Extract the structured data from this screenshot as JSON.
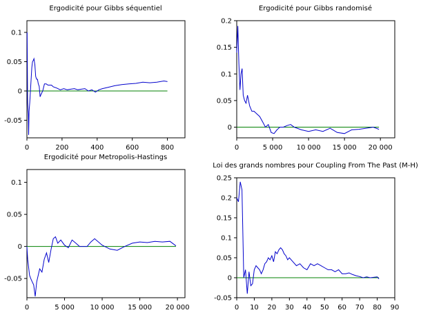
{
  "chart_data": [
    {
      "type": "line",
      "title": "Ergodicité pour Gibbs séquentiel",
      "xlabel": "",
      "ylabel": "",
      "xlim": [
        0,
        900
      ],
      "ylim": [
        -0.08,
        0.12
      ],
      "xticks": [
        0,
        200,
        400,
        600,
        800
      ],
      "xtick_labels": [
        "0",
        "200",
        "400",
        "600",
        "800"
      ],
      "yticks": [
        -0.05,
        0,
        0.05,
        0.1
      ],
      "ytick_labels": [
        "-0.05",
        "0",
        "0.05",
        "0.1"
      ],
      "reference_line": 0,
      "series": [
        {
          "x": [
            1,
            4,
            8,
            10,
            12,
            16,
            20,
            24,
            28,
            32,
            36,
            40,
            45,
            50,
            55,
            60,
            65,
            70,
            75,
            80,
            90,
            100,
            110,
            120,
            130,
            140,
            150,
            170,
            190,
            210,
            230,
            250,
            270,
            290,
            310,
            330,
            350,
            370,
            390,
            410,
            430,
            460,
            500,
            540,
            580,
            620,
            660,
            700,
            740,
            780,
            800
          ],
          "y": [
            0.1,
            -0.02,
            -0.04,
            -0.075,
            -0.035,
            -0.02,
            0.0,
            0.02,
            0.04,
            0.05,
            0.052,
            0.055,
            0.045,
            0.025,
            0.02,
            0.02,
            0.012,
            0.008,
            -0.01,
            -0.006,
            0.0,
            0.012,
            0.012,
            0.01,
            0.01,
            0.01,
            0.007,
            0.005,
            0.002,
            0.004,
            0.002,
            0.003,
            0.004,
            0.002,
            0.003,
            0.004,
            0.0,
            0.002,
            -0.002,
            0.002,
            0.004,
            0.006,
            0.009,
            0.011,
            0.012,
            0.013,
            0.015,
            0.014,
            0.015,
            0.017,
            0.016
          ]
        }
      ]
    },
    {
      "type": "line",
      "title": "Ergodicité pour Gibbs randomisé",
      "xlabel": "",
      "ylabel": "",
      "xlim": [
        0,
        22000
      ],
      "ylim": [
        -0.02,
        0.2
      ],
      "xticks": [
        0,
        5000,
        10000,
        15000,
        20000
      ],
      "xtick_labels": [
        "0",
        "5 000",
        "10 000",
        "15 000",
        "20 000"
      ],
      "yticks": [
        0,
        0.05,
        0.1,
        0.15,
        0.2
      ],
      "ytick_labels": [
        "0",
        "0.05",
        "0.1",
        "0.15",
        "0.2"
      ],
      "reference_line": 0,
      "series": [
        {
          "x": [
            0,
            150,
            300,
            450,
            600,
            750,
            900,
            1100,
            1300,
            1500,
            1800,
            2100,
            2400,
            2800,
            3200,
            3600,
            4000,
            4400,
            4800,
            5200,
            5600,
            6000,
            6500,
            7000,
            7500,
            8000,
            9000,
            10000,
            11000,
            12000,
            13000,
            14000,
            15000,
            16000,
            17000,
            18000,
            19000,
            19800
          ],
          "y": [
            0.14,
            0.19,
            0.12,
            0.07,
            0.1,
            0.11,
            0.06,
            0.05,
            0.045,
            0.06,
            0.04,
            0.03,
            0.03,
            0.025,
            0.02,
            0.01,
            0.0,
            0.005,
            -0.01,
            -0.012,
            -0.005,
            0.0,
            0.0,
            0.003,
            0.005,
            0.0,
            -0.005,
            -0.008,
            -0.005,
            -0.008,
            -0.002,
            -0.01,
            -0.012,
            -0.005,
            -0.004,
            -0.002,
            0.0,
            -0.004
          ]
        }
      ]
    },
    {
      "type": "line",
      "title": "Ergodicité pour Metropolis-Hastings",
      "xlabel": "",
      "ylabel": "",
      "xlim": [
        0,
        21000
      ],
      "ylim": [
        -0.08,
        0.12
      ],
      "xticks": [
        0,
        5000,
        10000,
        15000,
        20000
      ],
      "xtick_labels": [
        "0",
        "5 000",
        "10 000",
        "15 000",
        "20 000"
      ],
      "yticks": [
        -0.05,
        0,
        0.05,
        0.1
      ],
      "ytick_labels": [
        "-0.05",
        "0",
        "0.05",
        "0.1"
      ],
      "reference_line": 0,
      "series": [
        {
          "x": [
            0,
            100,
            200,
            350,
            500,
            700,
            900,
            1100,
            1300,
            1500,
            1700,
            2000,
            2300,
            2600,
            2900,
            3200,
            3500,
            3800,
            4100,
            4500,
            5000,
            5500,
            6000,
            6500,
            7000,
            7500,
            8000,
            8500,
            9000,
            10000,
            11000,
            12000,
            13000,
            14000,
            15000,
            16000,
            17000,
            18000,
            19000,
            19800
          ],
          "y": [
            0.0,
            -0.02,
            -0.03,
            -0.045,
            -0.05,
            -0.055,
            -0.06,
            -0.078,
            -0.055,
            -0.045,
            -0.035,
            -0.04,
            -0.02,
            -0.01,
            -0.025,
            -0.005,
            0.012,
            0.015,
            0.005,
            0.01,
            0.002,
            -0.002,
            0.01,
            0.005,
            0.0,
            0.0,
            0.0,
            0.007,
            0.012,
            0.002,
            -0.004,
            -0.006,
            0.0,
            0.005,
            0.007,
            0.006,
            0.008,
            0.007,
            0.008,
            0.001
          ]
        }
      ]
    },
    {
      "type": "line",
      "title": "Loi des grands nombres pour Coupling From The Past (M-H)",
      "xlabel": "",
      "ylabel": "",
      "xlim": [
        0,
        90
      ],
      "ylim": [
        -0.05,
        0.25
      ],
      "xticks": [
        0,
        10,
        20,
        30,
        40,
        50,
        60,
        70,
        80,
        90
      ],
      "xtick_labels": [
        "0",
        "10",
        "20",
        "30",
        "40",
        "50",
        "60",
        "70",
        "80",
        "90"
      ],
      "yticks": [
        -0.05,
        0,
        0.05,
        0.1,
        0.15,
        0.2,
        0.25
      ],
      "ytick_labels": [
        "-0.05",
        "0",
        "0.05",
        "0.1",
        "0.15",
        "0.2",
        "0.25"
      ],
      "reference_line": 0,
      "series": [
        {
          "x": [
            0,
            1,
            2,
            3,
            4,
            5,
            6,
            7,
            8,
            9,
            10,
            11,
            12,
            13,
            14,
            15,
            16,
            17,
            18,
            19,
            20,
            21,
            22,
            23,
            24,
            25,
            26,
            27,
            28,
            29,
            30,
            32,
            34,
            36,
            38,
            40,
            42,
            44,
            46,
            48,
            50,
            52,
            54,
            56,
            58,
            60,
            62,
            64,
            66,
            68,
            70,
            72,
            74,
            76,
            78,
            80,
            81
          ],
          "y": [
            0.2,
            0.19,
            0.24,
            0.22,
            0.0,
            0.02,
            -0.04,
            0.015,
            -0.02,
            -0.015,
            0.02,
            0.03,
            0.025,
            0.02,
            0.01,
            0.02,
            0.035,
            0.04,
            0.05,
            0.045,
            0.055,
            0.04,
            0.065,
            0.06,
            0.07,
            0.075,
            0.07,
            0.06,
            0.055,
            0.045,
            0.05,
            0.04,
            0.03,
            0.035,
            0.025,
            0.02,
            0.035,
            0.03,
            0.035,
            0.03,
            0.025,
            0.02,
            0.02,
            0.015,
            0.02,
            0.01,
            0.01,
            0.012,
            0.008,
            0.005,
            0.003,
            0.0,
            0.002,
            0.0,
            0.001,
            0.002,
            -0.003
          ]
        }
      ]
    }
  ],
  "colors": {
    "series": "#0000cc",
    "reference": "#008000",
    "axis": "#000000"
  }
}
